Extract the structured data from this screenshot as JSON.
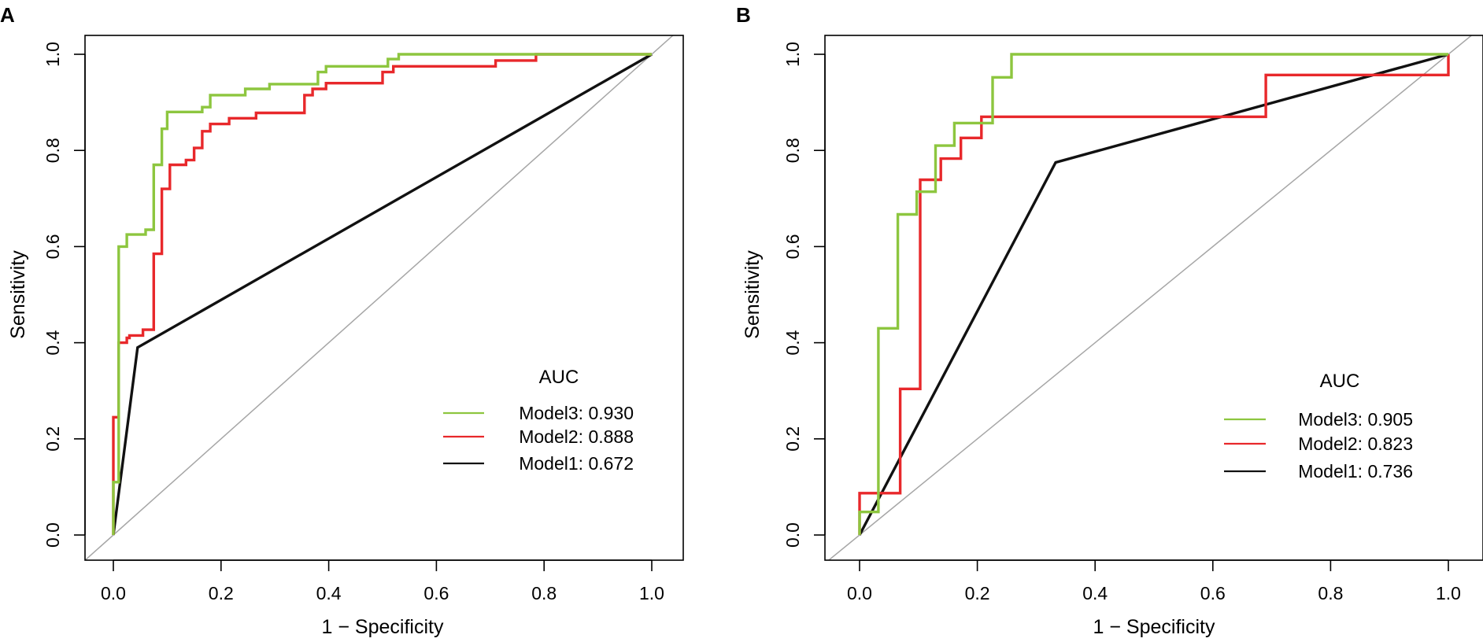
{
  "chart_data": [
    {
      "panel_label": "A",
      "type": "line",
      "title": "",
      "xlabel": "1 − Specificity",
      "ylabel": "Sensitivity",
      "xlim": [
        0,
        1
      ],
      "ylim": [
        0,
        1
      ],
      "xticks": [
        "0.0",
        "0.2",
        "0.4",
        "0.6",
        "0.8",
        "1.0"
      ],
      "yticks": [
        "0.0",
        "0.2",
        "0.4",
        "0.6",
        "0.8",
        "1.0"
      ],
      "grid": false,
      "reference_line": "diagonal",
      "legend": {
        "title": "AUC",
        "position": "bottom-right",
        "entries": [
          {
            "name": "Model3",
            "value": "0.930",
            "color": "#8DC63F"
          },
          {
            "name": "Model2",
            "value": "0.888",
            "color": "#E8282B"
          },
          {
            "name": "Model1",
            "value": "0.672",
            "color": "#111111"
          }
        ]
      },
      "series": [
        {
          "name": "Model3",
          "color": "#8DC63F",
          "points": [
            [
              0,
              0
            ],
            [
              0,
              0.11
            ],
            [
              0.01,
              0.11
            ],
            [
              0.01,
              0.6
            ],
            [
              0.025,
              0.6
            ],
            [
              0.025,
              0.625
            ],
            [
              0.06,
              0.625
            ],
            [
              0.06,
              0.635
            ],
            [
              0.075,
              0.635
            ],
            [
              0.075,
              0.77
            ],
            [
              0.09,
              0.77
            ],
            [
              0.09,
              0.845
            ],
            [
              0.1,
              0.845
            ],
            [
              0.1,
              0.88
            ],
            [
              0.165,
              0.88
            ],
            [
              0.165,
              0.89
            ],
            [
              0.18,
              0.89
            ],
            [
              0.18,
              0.915
            ],
            [
              0.245,
              0.915
            ],
            [
              0.245,
              0.928
            ],
            [
              0.29,
              0.928
            ],
            [
              0.29,
              0.938
            ],
            [
              0.38,
              0.938
            ],
            [
              0.38,
              0.963
            ],
            [
              0.395,
              0.963
            ],
            [
              0.395,
              0.975
            ],
            [
              0.51,
              0.975
            ],
            [
              0.51,
              0.99
            ],
            [
              0.53,
              0.99
            ],
            [
              0.53,
              1.0
            ],
            [
              1.0,
              1.0
            ]
          ]
        },
        {
          "name": "Model2",
          "color": "#E8282B",
          "points": [
            [
              0,
              0
            ],
            [
              0,
              0.245
            ],
            [
              0.01,
              0.245
            ],
            [
              0.01,
              0.4
            ],
            [
              0.025,
              0.4
            ],
            [
              0.025,
              0.41
            ],
            [
              0.03,
              0.41
            ],
            [
              0.03,
              0.415
            ],
            [
              0.055,
              0.415
            ],
            [
              0.055,
              0.427
            ],
            [
              0.075,
              0.427
            ],
            [
              0.075,
              0.585
            ],
            [
              0.09,
              0.585
            ],
            [
              0.09,
              0.72
            ],
            [
              0.105,
              0.72
            ],
            [
              0.105,
              0.77
            ],
            [
              0.135,
              0.77
            ],
            [
              0.135,
              0.78
            ],
            [
              0.15,
              0.78
            ],
            [
              0.15,
              0.805
            ],
            [
              0.165,
              0.805
            ],
            [
              0.165,
              0.84
            ],
            [
              0.18,
              0.84
            ],
            [
              0.18,
              0.855
            ],
            [
              0.215,
              0.855
            ],
            [
              0.215,
              0.867
            ],
            [
              0.265,
              0.867
            ],
            [
              0.265,
              0.878
            ],
            [
              0.355,
              0.878
            ],
            [
              0.355,
              0.915
            ],
            [
              0.37,
              0.915
            ],
            [
              0.37,
              0.928
            ],
            [
              0.395,
              0.928
            ],
            [
              0.395,
              0.94
            ],
            [
              0.5,
              0.94
            ],
            [
              0.5,
              0.963
            ],
            [
              0.52,
              0.963
            ],
            [
              0.52,
              0.975
            ],
            [
              0.71,
              0.975
            ],
            [
              0.71,
              0.987
            ],
            [
              0.785,
              0.987
            ],
            [
              0.785,
              1.0
            ],
            [
              1.0,
              1.0
            ]
          ]
        },
        {
          "name": "Model1",
          "color": "#111111",
          "points": [
            [
              0,
              0
            ],
            [
              0.045,
              0.39
            ],
            [
              1.0,
              1.0
            ]
          ]
        }
      ]
    },
    {
      "panel_label": "B",
      "type": "line",
      "title": "",
      "xlabel": "1 − Specificity",
      "ylabel": "Sensitivity",
      "xlim": [
        0,
        1
      ],
      "ylim": [
        0,
        1
      ],
      "xticks": [
        "0.0",
        "0.2",
        "0.4",
        "0.6",
        "0.8",
        "1.0"
      ],
      "yticks": [
        "0.0",
        "0.2",
        "0.4",
        "0.6",
        "0.8",
        "1.0"
      ],
      "grid": false,
      "reference_line": "diagonal",
      "legend": {
        "title": "AUC",
        "position": "bottom-right",
        "entries": [
          {
            "name": "Model3",
            "value": "0.905",
            "color": "#8DC63F"
          },
          {
            "name": "Model2",
            "value": "0.823",
            "color": "#E8282B"
          },
          {
            "name": "Model1",
            "value": "0.736",
            "color": "#111111"
          }
        ]
      },
      "series": [
        {
          "name": "Model3",
          "color": "#8DC63F",
          "points": [
            [
              0,
              0
            ],
            [
              0,
              0.048
            ],
            [
              0.032,
              0.048
            ],
            [
              0.032,
              0.43
            ],
            [
              0.065,
              0.43
            ],
            [
              0.065,
              0.667
            ],
            [
              0.097,
              0.667
            ],
            [
              0.097,
              0.714
            ],
            [
              0.129,
              0.714
            ],
            [
              0.129,
              0.81
            ],
            [
              0.161,
              0.81
            ],
            [
              0.161,
              0.857
            ],
            [
              0.226,
              0.857
            ],
            [
              0.226,
              0.952
            ],
            [
              0.258,
              0.952
            ],
            [
              0.258,
              1.0
            ],
            [
              1.0,
              1.0
            ]
          ]
        },
        {
          "name": "Model2",
          "color": "#E8282B",
          "points": [
            [
              0,
              0
            ],
            [
              0,
              0.087
            ],
            [
              0.069,
              0.087
            ],
            [
              0.069,
              0.304
            ],
            [
              0.103,
              0.304
            ],
            [
              0.103,
              0.739
            ],
            [
              0.138,
              0.739
            ],
            [
              0.138,
              0.783
            ],
            [
              0.172,
              0.783
            ],
            [
              0.172,
              0.826
            ],
            [
              0.207,
              0.826
            ],
            [
              0.207,
              0.87
            ],
            [
              0.69,
              0.87
            ],
            [
              0.69,
              0.957
            ],
            [
              1.0,
              0.957
            ],
            [
              1.0,
              1.0
            ]
          ]
        },
        {
          "name": "Model1",
          "color": "#111111",
          "points": [
            [
              0,
              0
            ],
            [
              0.333,
              0.775
            ],
            [
              1.0,
              1.0
            ]
          ]
        }
      ]
    }
  ]
}
